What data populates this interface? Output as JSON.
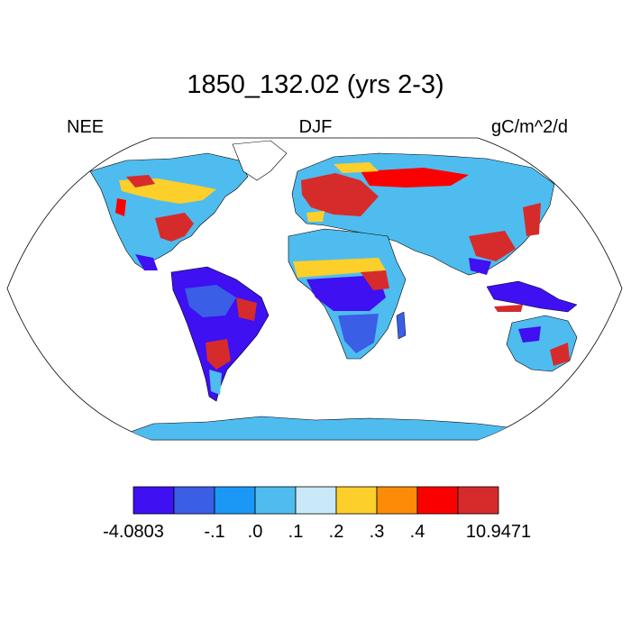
{
  "title": "1850_132.02 (yrs 2-3)",
  "subtitle_left": "NEE",
  "subtitle_center": "DJF",
  "subtitle_right": "gC/m^2/d",
  "colorbar": {
    "colors": [
      "#3e10f2",
      "#3a5ee6",
      "#1b98f6",
      "#4fbcef",
      "#c9e8f8",
      "#fccf2a",
      "#fc8b08",
      "#fb0000",
      "#d62b2b"
    ],
    "labels": [
      "-4.0803",
      "-.1",
      ".0",
      ".1",
      ".2",
      ".3",
      ".4",
      "10.9471"
    ],
    "label_positions": [
      0,
      2,
      3,
      4,
      5,
      6,
      7,
      9
    ]
  },
  "map": {
    "projection": "robinson",
    "ocean_color": "#ffffff",
    "coast_color": "#000000"
  }
}
